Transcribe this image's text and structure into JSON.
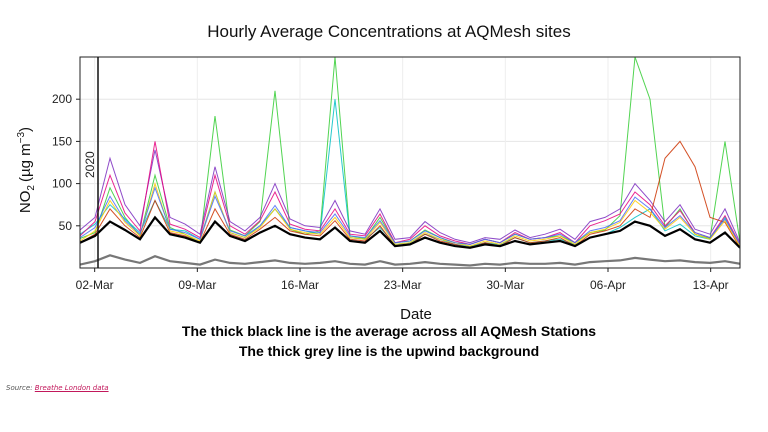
{
  "chart_data": {
    "type": "line",
    "title": "Hourly Average Concentrations at AQMesh sites",
    "xlabel": "Date",
    "ylabel_main": "NO",
    "ylabel_sub": "2",
    "ylabel_unit": "(µg m",
    "ylabel_exp": "−3",
    "ylabel_close": ")",
    "year_label": "2020",
    "x_ticks": [
      "02-Mar",
      "09-Mar",
      "16-Mar",
      "23-Mar",
      "30-Mar",
      "06-Apr",
      "13-Apr"
    ],
    "y_ticks": [
      50,
      100,
      150,
      200
    ],
    "ylim": [
      0,
      250
    ],
    "xlim_days": [
      0,
      45
    ],
    "grid": true,
    "series": [
      {
        "role": "sites",
        "color": "#33cc33",
        "values": [
          35,
          42,
          95,
          60,
          38,
          110,
          48,
          40,
          30,
          180,
          45,
          38,
          55,
          210,
          46,
          40,
          44,
          260,
          38,
          35,
          60,
          30,
          32,
          45,
          36,
          30,
          28,
          34,
          30,
          40,
          34,
          36,
          38,
          30,
          42,
          45,
          62,
          255,
          200,
          48,
          70,
          40,
          35,
          150,
          30
        ]
      },
      {
        "role": "sites",
        "color": "#00bfc4",
        "values": [
          40,
          52,
          75,
          58,
          42,
          80,
          46,
          44,
          34,
          90,
          42,
          36,
          50,
          70,
          48,
          44,
          40,
          200,
          36,
          34,
          48,
          28,
          30,
          40,
          34,
          28,
          26,
          30,
          28,
          36,
          30,
          32,
          34,
          28,
          36,
          40,
          48,
          60,
          70,
          44,
          52,
          38,
          34,
          60,
          26
        ]
      },
      {
        "role": "sites",
        "color": "#7b2cbf",
        "values": [
          45,
          60,
          130,
          75,
          50,
          140,
          60,
          52,
          40,
          120,
          55,
          44,
          60,
          100,
          58,
          50,
          48,
          80,
          44,
          40,
          70,
          34,
          36,
          55,
          42,
          34,
          30,
          36,
          34,
          45,
          36,
          40,
          46,
          34,
          55,
          60,
          70,
          100,
          80,
          55,
          75,
          46,
          40,
          70,
          30
        ]
      },
      {
        "role": "sites",
        "color": "#e6007e",
        "values": [
          38,
          55,
          110,
          65,
          44,
          150,
          52,
          46,
          36,
          110,
          50,
          40,
          56,
          90,
          52,
          46,
          44,
          70,
          40,
          38,
          64,
          30,
          34,
          50,
          38,
          32,
          28,
          34,
          30,
          42,
          34,
          36,
          42,
          30,
          50,
          56,
          64,
          90,
          75,
          50,
          68,
          42,
          36,
          62,
          28
        ]
      },
      {
        "role": "sites",
        "color": "#cc3300",
        "values": [
          30,
          40,
          70,
          50,
          36,
          80,
          42,
          38,
          30,
          70,
          40,
          34,
          46,
          60,
          44,
          40,
          38,
          56,
          34,
          32,
          50,
          26,
          28,
          40,
          32,
          28,
          24,
          30,
          26,
          36,
          30,
          32,
          36,
          26,
          40,
          44,
          50,
          70,
          60,
          130,
          150,
          120,
          60,
          54,
          24
        ]
      },
      {
        "role": "sites",
        "color": "#ffcc00",
        "values": [
          32,
          44,
          80,
          54,
          38,
          100,
          44,
          40,
          32,
          90,
          42,
          36,
          48,
          70,
          46,
          42,
          40,
          60,
          36,
          34,
          54,
          28,
          30,
          42,
          34,
          30,
          26,
          32,
          28,
          38,
          32,
          34,
          38,
          28,
          42,
          46,
          54,
          80,
          66,
          46,
          60,
          40,
          34,
          56,
          26
        ]
      },
      {
        "role": "sites",
        "color": "#4a6cf7",
        "values": [
          36,
          48,
          85,
          56,
          40,
          95,
          46,
          42,
          34,
          85,
          44,
          38,
          50,
          74,
          48,
          44,
          42,
          64,
          38,
          36,
          56,
          30,
          32,
          44,
          36,
          30,
          28,
          34,
          30,
          40,
          34,
          36,
          40,
          30,
          44,
          48,
          56,
          84,
          70,
          48,
          62,
          42,
          36,
          58,
          28
        ]
      },
      {
        "role": "average",
        "color": "#000000",
        "values": [
          30,
          38,
          55,
          45,
          34,
          60,
          40,
          36,
          30,
          55,
          38,
          32,
          42,
          50,
          40,
          36,
          34,
          48,
          32,
          30,
          44,
          26,
          28,
          36,
          30,
          26,
          24,
          28,
          26,
          32,
          28,
          30,
          32,
          26,
          36,
          40,
          44,
          55,
          50,
          38,
          46,
          34,
          30,
          42,
          24
        ]
      },
      {
        "role": "upwind background",
        "color": "#777777",
        "values": [
          4,
          8,
          15,
          10,
          6,
          14,
          8,
          6,
          4,
          10,
          6,
          5,
          7,
          9,
          6,
          5,
          6,
          8,
          5,
          4,
          8,
          4,
          5,
          7,
          5,
          4,
          3,
          5,
          4,
          6,
          5,
          5,
          6,
          4,
          7,
          8,
          9,
          12,
          10,
          8,
          9,
          7,
          6,
          8,
          5
        ]
      }
    ],
    "caption_line1": "The thick black line is the average across all AQMesh Stations",
    "caption_line2": "The thick grey line is the upwind background"
  },
  "source": {
    "prefix": "Source:",
    "link_text": "Breathe London data"
  }
}
